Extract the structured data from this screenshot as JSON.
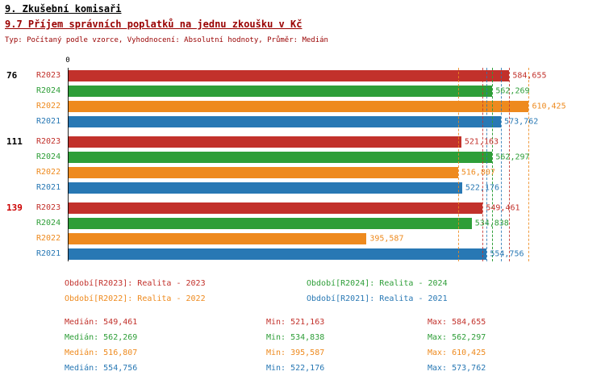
{
  "header": {
    "title": "9. Zkušební komisaři",
    "subtitle": "9.7 Příjem správních poplatků na jednu zkoušku v Kč",
    "meta": "Typ: Počítaný podle vzorce, Vyhodnocení: Absolutní hodnoty, Průměr: Medián"
  },
  "chart_data": {
    "type": "bar",
    "orientation": "horizontal",
    "title": "9.7 Příjem správních poplatků na jednu zkoušku v Kč",
    "average_type": "Medián",
    "x_axis": {
      "origin_label": "0",
      "xlim": [
        0,
        705000
      ],
      "grid": false
    },
    "groups": [
      {
        "label": "76",
        "color": "#000000"
      },
      {
        "label": "111",
        "color": "#000000"
      },
      {
        "label": "139",
        "color": "#CC0000"
      }
    ],
    "series": [
      {
        "name": "R2023",
        "color": "#C2312B",
        "values": [
          584655,
          521163,
          549461
        ],
        "value_labels": [
          "584,655",
          "521,163",
          "549,461"
        ],
        "median": 549461,
        "min": 521163,
        "max": 584655
      },
      {
        "name": "R2024",
        "color": "#2E9E38",
        "values": [
          562269,
          562297,
          534838
        ],
        "value_labels": [
          "562,269",
          "562,297",
          "534,838"
        ],
        "median": 562269,
        "min": 534838,
        "max": 562297
      },
      {
        "name": "R2022",
        "color": "#EE8A1E",
        "values": [
          610425,
          516807,
          395587
        ],
        "value_labels": [
          "610,425",
          "516,807",
          "395,587"
        ],
        "median": 516807,
        "min": 395587,
        "max": 610425
      },
      {
        "name": "R2021",
        "color": "#2878B4",
        "values": [
          573762,
          522176,
          554756
        ],
        "value_labels": [
          "573,762",
          "522,176",
          "554,756"
        ],
        "median": 554756,
        "min": 522176,
        "max": 573762
      }
    ]
  },
  "legend": [
    {
      "label": "Období[R2023]: Realita - 2023",
      "color": "#C2312B"
    },
    {
      "label": "Období[R2024]: Realita - 2024",
      "color": "#2E9E38"
    },
    {
      "label": "Období[R2022]: Realita - 2022",
      "color": "#EE8A1E"
    },
    {
      "label": "Období[R2021]: Realita - 2021",
      "color": "#2878B4"
    }
  ],
  "stats": [
    {
      "color": "#C2312B",
      "median": "Medián: 549,461",
      "min": "Min: 521,163",
      "max": "Max: 584,655"
    },
    {
      "color": "#2E9E38",
      "median": "Medián: 562,269",
      "min": "Min: 534,838",
      "max": "Max: 562,297"
    },
    {
      "color": "#EE8A1E",
      "median": "Medián: 516,807",
      "min": "Min: 395,587",
      "max": "Max: 610,425"
    },
    {
      "color": "#2878B4",
      "median": "Medián: 554,756",
      "min": "Min: 522,176",
      "max": "Max: 573,762"
    }
  ]
}
